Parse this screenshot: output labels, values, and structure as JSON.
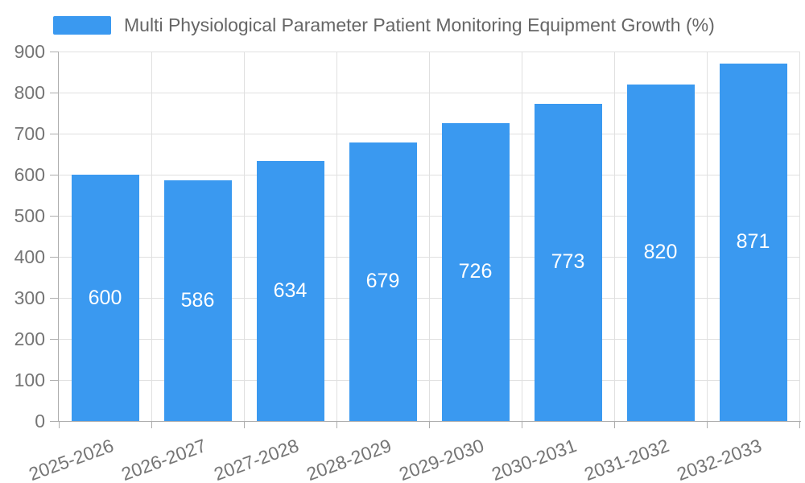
{
  "chart_data": {
    "type": "bar",
    "title": "Multi Physiological Parameter Patient Monitoring Equipment Growth (%)",
    "categories": [
      "2025-2026",
      "2026-2027",
      "2027-2028",
      "2028-2029",
      "2029-2030",
      "2030-2031",
      "2031-2032",
      "2032-2033"
    ],
    "values": [
      600,
      586,
      634,
      679,
      726,
      773,
      820,
      871
    ],
    "xlabel": "",
    "ylabel": "",
    "ylim": [
      0,
      900
    ],
    "yticks": [
      0,
      100,
      200,
      300,
      400,
      500,
      600,
      700,
      800,
      900
    ],
    "grid": true,
    "legend_position": "top-left",
    "label_position": "bar-center",
    "x_label_rotation_deg": -20
  },
  "colors": {
    "bar": "#3A99F0",
    "grid": "#e0e0e0",
    "axis": "#adadad",
    "axis_text": "#757575",
    "title_text": "#666666",
    "value_text": "#ffffff",
    "background": "#ffffff"
  }
}
